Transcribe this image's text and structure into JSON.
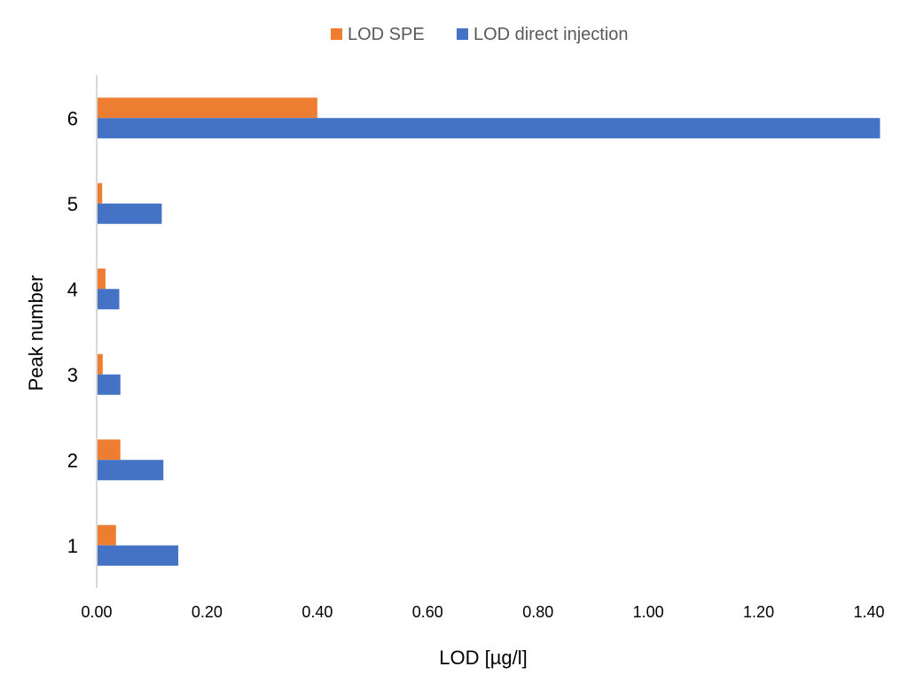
{
  "chart_data": {
    "type": "bar",
    "orientation": "horizontal",
    "categories": [
      "1",
      "2",
      "3",
      "4",
      "5",
      "6"
    ],
    "series": [
      {
        "name": "LOD SPE",
        "color": "#ED7D31",
        "values": [
          0.035,
          0.043,
          0.011,
          0.016,
          0.01,
          0.4
        ]
      },
      {
        "name": "LOD direct injection",
        "color": "#4472C4",
        "values": [
          0.148,
          0.121,
          0.043,
          0.041,
          0.118,
          1.42
        ]
      }
    ],
    "xlabel": "LOD [µg/l]",
    "ylabel": "Peak number",
    "xlim": [
      0,
      1.4
    ],
    "xticks": [
      "0.00",
      "0.20",
      "0.40",
      "0.60",
      "0.80",
      "1.00",
      "1.20",
      "1.40"
    ],
    "grid": false,
    "legend_position": "top"
  }
}
